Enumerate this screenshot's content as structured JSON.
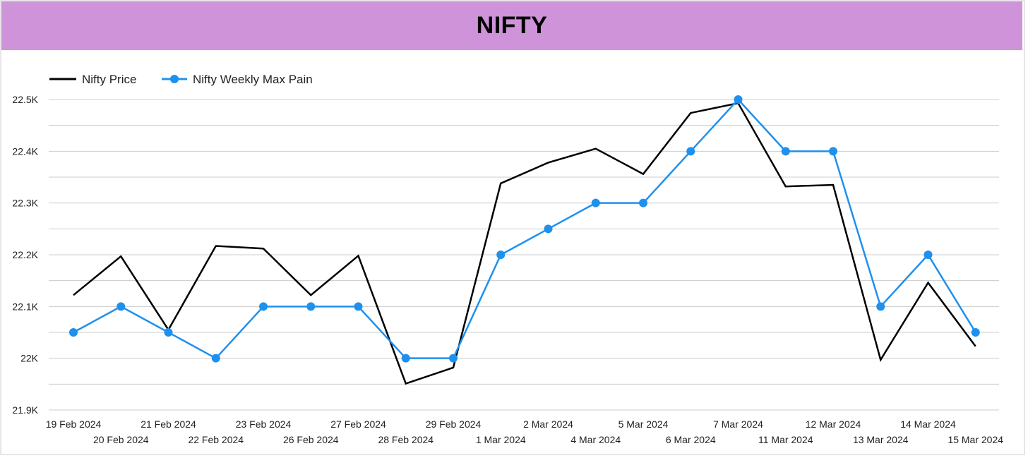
{
  "colors": {
    "title_bg": "#ce93d8",
    "price_line": "#000000",
    "maxpain_line": "#1e90ee",
    "grid": "#cccccc",
    "axis_text": "#222222"
  },
  "chart_data": {
    "type": "line",
    "title": "NIFTY",
    "xlabel": "",
    "ylabel": "",
    "categories": [
      "19 Feb 2024",
      "20 Feb 2024",
      "21 Feb 2024",
      "22 Feb 2024",
      "23 Feb 2024",
      "26 Feb 2024",
      "27 Feb 2024",
      "28 Feb 2024",
      "29 Feb 2024",
      "1 Mar 2024",
      "2 Mar 2024",
      "4 Mar 2024",
      "5 Mar 2024",
      "6 Mar 2024",
      "7 Mar 2024",
      "11 Mar 2024",
      "12 Mar 2024",
      "13 Mar 2024",
      "14 Mar 2024",
      "15 Mar 2024"
    ],
    "series": [
      {
        "name": "Nifty Price",
        "color": "#000000",
        "markers": false,
        "values": [
          22122,
          22197,
          22055,
          22217,
          22212,
          22122,
          22198,
          21951,
          21982,
          22338,
          22378,
          22405,
          22356,
          22474,
          22493,
          22332,
          22335,
          21997,
          22146,
          22023
        ]
      },
      {
        "name": "Nifty Weekly Max Pain",
        "color": "#1e90ee",
        "markers": true,
        "values": [
          22050,
          22100,
          22050,
          22000,
          22100,
          22100,
          22100,
          22000,
          22000,
          22200,
          22250,
          22300,
          22300,
          22400,
          22500,
          22400,
          22400,
          22100,
          22200,
          22050
        ]
      }
    ],
    "ylim": [
      21900,
      22500
    ],
    "yticks": [
      21900,
      22000,
      22100,
      22200,
      22300,
      22400,
      22500
    ],
    "ytick_labels": [
      "21.9K",
      "22K",
      "22.1K",
      "22.2K",
      "22.3K",
      "22.4K",
      "22.5K"
    ],
    "grid": true,
    "legend_position": "top-left"
  }
}
